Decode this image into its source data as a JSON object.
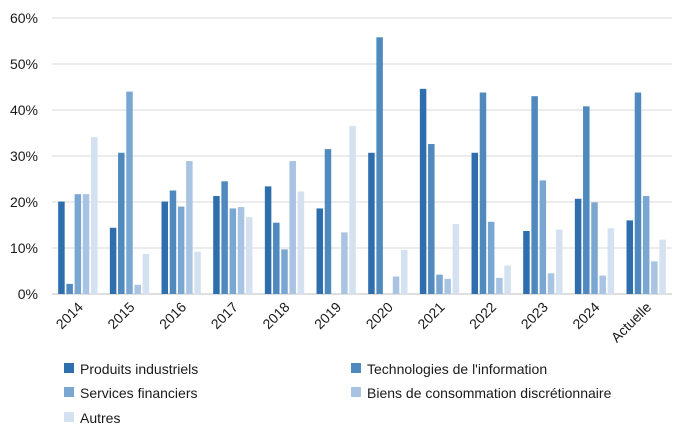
{
  "chart_data": {
    "type": "bar",
    "categories": [
      "2014",
      "2015",
      "2016",
      "2017",
      "2018",
      "2019",
      "2020",
      "2021",
      "2022",
      "2023",
      "2024",
      "Actuelle"
    ],
    "series": [
      {
        "name": "Produits industriels",
        "color": "#2e6ead",
        "values": [
          20.1,
          14.4,
          20.1,
          21.3,
          23.4,
          18.6,
          30.7,
          44.6,
          30.7,
          13.7,
          20.7,
          16.0
        ]
      },
      {
        "name": "Technologies de l'information",
        "color": "#4f89be",
        "values": [
          2.2,
          30.7,
          22.5,
          24.5,
          15.5,
          31.5,
          55.8,
          32.6,
          43.8,
          43.0,
          40.8,
          43.8
        ]
      },
      {
        "name": "Services financiers",
        "color": "#7aa7d2",
        "values": [
          21.7,
          44.0,
          19.0,
          18.6,
          9.7,
          0,
          0,
          4.2,
          15.7,
          24.7,
          19.9,
          21.3
        ]
      },
      {
        "name": "Biens de consommation discrétionnaire",
        "color": "#a9c4e2",
        "values": [
          21.7,
          2.0,
          28.9,
          18.9,
          28.9,
          13.4,
          3.8,
          3.3,
          3.5,
          4.5,
          4.0,
          7.1
        ]
      },
      {
        "name": "Autres",
        "color": "#d3e1f0",
        "values": [
          34.1,
          8.7,
          9.2,
          16.7,
          22.3,
          36.5,
          9.6,
          15.2,
          6.2,
          14.0,
          14.3,
          11.8
        ]
      }
    ],
    "y_ticks": [
      "0%",
      "10%",
      "20%",
      "30%",
      "40%",
      "50%",
      "60%"
    ],
    "ylim": [
      0,
      60
    ],
    "grid": true,
    "legend_position": "bottom"
  }
}
